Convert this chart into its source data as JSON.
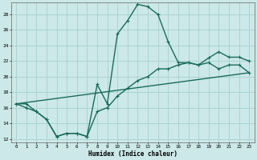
{
  "bg_color": "#cce8e8",
  "grid_color": "#aad4d4",
  "line_color": "#1a6b5a",
  "xlabel": "Humidex (Indice chaleur)",
  "xlim": [
    -0.5,
    23.5
  ],
  "ylim": [
    11.5,
    29.5
  ],
  "xticks": [
    0,
    1,
    2,
    3,
    4,
    5,
    6,
    7,
    8,
    9,
    10,
    11,
    12,
    13,
    14,
    15,
    16,
    17,
    18,
    19,
    20,
    21,
    22,
    23
  ],
  "yticks": [
    12,
    14,
    16,
    18,
    20,
    22,
    24,
    26,
    28
  ],
  "line1_x": [
    0,
    1,
    2,
    3,
    4,
    5,
    6,
    7,
    8,
    9,
    10,
    11,
    12,
    13,
    14,
    15,
    16,
    17,
    18,
    19,
    20,
    21,
    22,
    23
  ],
  "line1_y": [
    16.5,
    16.5,
    15.5,
    14.5,
    12.3,
    12.7,
    12.7,
    12.3,
    19.0,
    16.5,
    25.5,
    27.2,
    29.3,
    29.0,
    28.0,
    24.5,
    21.8,
    21.8,
    21.5,
    22.4,
    23.2,
    22.5,
    22.5,
    22.0
  ],
  "line2_x": [
    0,
    23
  ],
  "line2_y": [
    16.5,
    20.5
  ],
  "line3_x": [
    0,
    1,
    2,
    3,
    4,
    5,
    6,
    7,
    8,
    9,
    10,
    11,
    12,
    13,
    14,
    15,
    16,
    17,
    18,
    19,
    20,
    21,
    22,
    23
  ],
  "line3_y": [
    16.5,
    16.0,
    15.5,
    14.5,
    12.3,
    12.7,
    12.7,
    12.3,
    15.5,
    16.0,
    17.5,
    18.5,
    19.5,
    20.0,
    21.0,
    21.0,
    21.5,
    21.8,
    21.5,
    21.8,
    21.0,
    21.5,
    21.5,
    20.5
  ]
}
